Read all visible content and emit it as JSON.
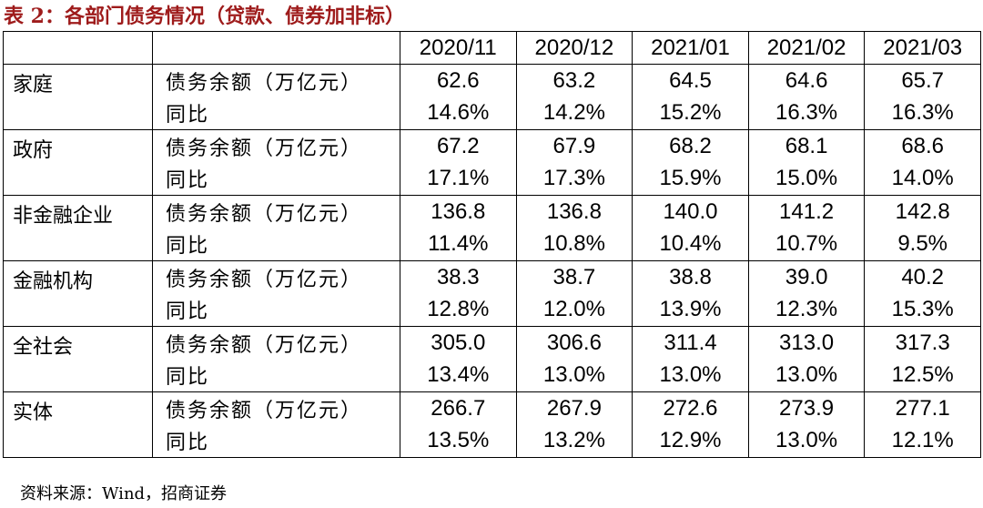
{
  "title": "表 2：各部门债务情况（贷款、债券加非标）",
  "columns": [
    "2020/11",
    "2020/12",
    "2021/01",
    "2021/02",
    "2021/03"
  ],
  "rows": [
    {
      "group": "家庭",
      "metric1": "债务余额（万亿元）",
      "values1": [
        "62.6",
        "63.2",
        "64.5",
        "64.6",
        "65.7"
      ],
      "metric2": "同比",
      "values2": [
        "14.6%",
        "14.2%",
        "15.2%",
        "16.3%",
        "16.3%"
      ]
    },
    {
      "group": "政府",
      "metric1": "债务余额（万亿元）",
      "values1": [
        "67.2",
        "67.9",
        "68.2",
        "68.1",
        "68.6"
      ],
      "metric2": "同比",
      "values2": [
        "17.1%",
        "17.3%",
        "15.9%",
        "15.0%",
        "14.0%"
      ]
    },
    {
      "group": "非金融企业",
      "metric1": "债务余额（万亿元）",
      "values1": [
        "136.8",
        "136.8",
        "140.0",
        "141.2",
        "142.8"
      ],
      "metric2": "同比",
      "values2": [
        "11.4%",
        "10.8%",
        "10.4%",
        "10.7%",
        "9.5%"
      ]
    },
    {
      "group": "金融机构",
      "metric1": "债务余额（万亿元）",
      "values1": [
        "38.3",
        "38.7",
        "38.8",
        "39.0",
        "40.2"
      ],
      "metric2": "同比",
      "values2": [
        "12.8%",
        "12.0%",
        "13.9%",
        "12.3%",
        "15.3%"
      ]
    },
    {
      "group": "全社会",
      "metric1": "债务余额（万亿元）",
      "values1": [
        "305.0",
        "306.6",
        "311.4",
        "313.0",
        "317.3"
      ],
      "metric2": "同比",
      "values2": [
        "13.4%",
        "13.0%",
        "13.0%",
        "13.0%",
        "12.5%"
      ]
    },
    {
      "group": "实体",
      "metric1": "债务余额（万亿元）",
      "values1": [
        "266.7",
        "267.9",
        "272.6",
        "273.9",
        "277.1"
      ],
      "metric2": "同比",
      "values2": [
        "13.5%",
        "13.2%",
        "12.9%",
        "13.0%",
        "12.1%"
      ]
    }
  ],
  "source": "资料来源：Wind，招商证券"
}
